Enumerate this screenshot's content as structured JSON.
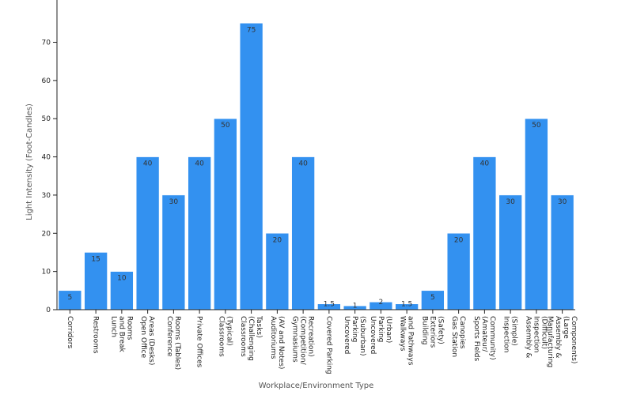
{
  "chart_data": {
    "type": "bar",
    "title": "",
    "xlabel": "Workplace/Environment Type",
    "ylabel": "Light Intensity (Foot-Candles)",
    "ylim": [
      0,
      79
    ],
    "yticks": [
      0,
      10,
      20,
      30,
      40,
      50,
      60,
      70
    ],
    "grid": false,
    "bar_color": "#3391f0",
    "bar_stroke": "#ffffff",
    "categories": [
      "Corridors",
      "Restrooms",
      "Lunch and Break Rooms",
      "Open Office Areas (Desks)",
      "Conference Rooms (Tables)",
      "Private Offices",
      "Classrooms (Typical)",
      "Classrooms (Challenging Tasks)",
      "Auditoriums (AV and Notes)",
      "Gymnasiums (Competition/ Recreation)",
      "Covered Parking",
      "Uncovered Parking (Suburban)",
      "Uncovered Parking (Urban)",
      "Walkways and Pathways",
      "Building Exteriors (Safety)",
      "Gas Station Canopies",
      "Sports Fields (Amateur/ Community)",
      "Inspection (Simple)",
      "Assembly & Inspection (Difficult)",
      "Manufacturing Assembly & Components (Large Components)"
    ],
    "tick_labels": [
      [
        "Corridors"
      ],
      [
        "Restrooms"
      ],
      [
        "Lunch",
        "and Break",
        "Rooms"
      ],
      [
        "Open Office",
        "Areas (Desks)"
      ],
      [
        "Conference",
        "Rooms (Tables)"
      ],
      [
        "Private Offices"
      ],
      [
        "Classrooms",
        "(Typical)"
      ],
      [
        "Classrooms",
        "(Challenging",
        "Tasks)"
      ],
      [
        "Auditoriums",
        "(AV and Notes)"
      ],
      [
        "Gymnasiums",
        "(Competition/",
        "Recreation)"
      ],
      [
        "Covered Parking"
      ],
      [
        "Uncovered",
        "Parking",
        "(Suburban)"
      ],
      [
        "Uncovered",
        "Parking",
        "(Urban)"
      ],
      [
        "Walkways",
        "and Pathways"
      ],
      [
        "Building",
        "Exteriors",
        "(Safety)"
      ],
      [
        "Gas Station",
        "Canopies"
      ],
      [
        "Sports Fields",
        "(Amateur/",
        "Community)"
      ],
      [
        "Inspection",
        "(Simple)"
      ],
      [
        "Assembly &",
        "Inspection",
        "(Difficult)"
      ],
      [
        "Manufacturing",
        "Assembly &",
        "(Large",
        "Components)"
      ]
    ],
    "values": [
      5,
      15,
      10,
      40,
      30,
      40,
      50,
      75,
      20,
      40,
      1.5,
      1,
      2,
      1.5,
      5,
      20,
      40,
      30,
      50,
      30
    ],
    "data_labels": [
      "5",
      "15",
      "10",
      "40",
      "30",
      "40",
      "50",
      "75",
      "20",
      "40",
      "1.5",
      "1",
      "2",
      "1.5",
      "5",
      "20",
      "40",
      "30",
      "50",
      "30"
    ]
  }
}
